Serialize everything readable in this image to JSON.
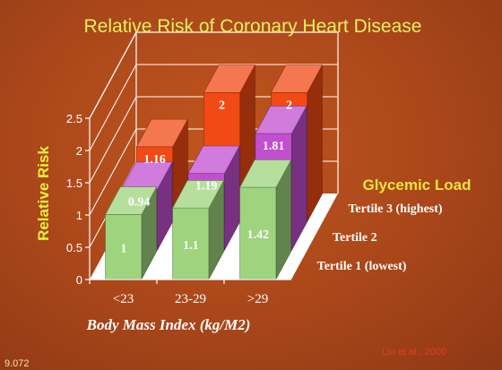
{
  "slide": {
    "footer_number": "9.072",
    "citation": "Liu et al., 2000"
  },
  "colors": {
    "background": "#a9461a",
    "title": "#e6ef5e",
    "tertile1": "#9ed47e",
    "tertile2": "#c24fd0",
    "tertile3": "#f24a14",
    "floor": "#ffffff"
  },
  "chart_data": {
    "type": "bar",
    "subtype": "3d-grouped",
    "title": "Relative Risk of Coronary Heart Disease",
    "xlabel": "Body Mass Index (kg/M2)",
    "ylabel": "Relative Risk",
    "zlabel": "Glycemic Load",
    "categories": [
      "<23",
      "23-29",
      ">29"
    ],
    "ylim": [
      0,
      2.5
    ],
    "yticks": [
      "0",
      "0.5",
      "1",
      "1.5",
      "2",
      "2.5"
    ],
    "series": [
      {
        "name": "Tertile 1 (lowest)",
        "values": [
          1,
          1.1,
          1.42
        ],
        "labels": [
          "1",
          "1.1",
          "1.42"
        ]
      },
      {
        "name": "Tertile 2",
        "values": [
          0.94,
          1.19,
          1.81
        ],
        "labels": [
          "0.94",
          "1.19",
          "1.81"
        ]
      },
      {
        "name": "Tertile 3 (highest)",
        "values": [
          1.16,
          2,
          2
        ],
        "labels": [
          "1.16",
          "2",
          "2"
        ]
      }
    ],
    "grid": true
  }
}
